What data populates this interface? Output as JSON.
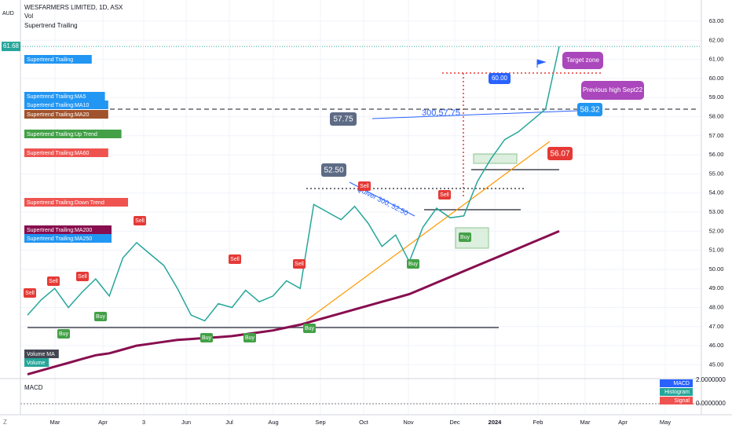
{
  "header": {
    "symbol": "WESFARMERS LIMITED, 1D, ASX",
    "volume": "Vol",
    "indicator": "Supertrend Trailing",
    "currency": "AUD"
  },
  "legend": [
    {
      "label": "Supertrend Trailing",
      "color": "#2196f3"
    },
    {
      "label": "Supertrend Trailing:MA5",
      "color": "#2196f3"
    },
    {
      "label": "Supertrend Trailing:MA10",
      "color": "#2196f3"
    },
    {
      "label": "Supertrend Trailing:MA20",
      "color": "#a0522d"
    },
    {
      "label": "Supertrend Trailing:Up Trend",
      "color": "#43a047"
    },
    {
      "label": "Supertrend Trailing:MA60",
      "color": "#ef5350"
    },
    {
      "label": "Supertrend Trailing:Down Trend",
      "color": "#ef5350"
    },
    {
      "label": "Supertrend Trailing:MA200",
      "color": "#880e4f"
    },
    {
      "label": "Supertrend Trailing:MA250",
      "color": "#2196f3"
    },
    {
      "label": "Volume MA",
      "color": "#434651"
    },
    {
      "label": "Volume",
      "color": "#26a69a"
    }
  ],
  "price_axis": {
    "ticks": [
      "63.00",
      "62.00",
      "61.00",
      "60.00",
      "59.00",
      "58.00",
      "57.00",
      "56.00",
      "55.00",
      "54.00",
      "53.00",
      "52.00",
      "51.00",
      "50.00",
      "49.00",
      "48.00",
      "47.00",
      "46.00",
      "45.00"
    ],
    "last_price": "61.68"
  },
  "time_axis": [
    "Mar",
    "Apr",
    "3",
    "Jun",
    "Jul",
    "Aug",
    "Sep",
    "Oct",
    "Nov",
    "Dec",
    "2024",
    "Feb",
    "Mar",
    "Apr",
    "May"
  ],
  "price_series": {
    "close": [
      47.6,
      48.4,
      49.0,
      48.0,
      48.8,
      49.5,
      48.6,
      50.6,
      51.4,
      50.8,
      50.2,
      49.0,
      47.6,
      47.3,
      48.2,
      48.0,
      48.9,
      48.3,
      48.6,
      49.4,
      49.0,
      53.4,
      53.0,
      52.6,
      53.3,
      52.4,
      51.2,
      51.8,
      50.4,
      52.2,
      53.2,
      52.7,
      52.8,
      54.6,
      55.8,
      56.8,
      57.2,
      57.8,
      58.4,
      61.68
    ],
    "ma250": [
      44.5,
      44.7,
      44.9,
      45.1,
      45.3,
      45.5,
      45.6,
      45.8,
      46.0,
      46.1,
      46.2,
      46.3,
      46.35,
      46.4,
      46.45,
      46.5,
      46.6,
      46.7,
      46.8,
      46.95,
      47.1,
      47.3,
      47.5,
      47.7,
      47.9,
      48.1,
      48.3,
      48.5,
      48.7,
      49.0,
      49.3,
      49.6,
      49.9,
      50.2,
      50.5,
      50.8,
      51.1,
      51.4,
      51.7,
      52.0
    ]
  },
  "annotations": {
    "box_a": "52.50",
    "box_b": "57.75",
    "line_label": "300,57.75",
    "slope_label": "Quiver 300, 52.50",
    "target": "Target zone",
    "previous_high": "Previous high Sept22",
    "level_60": "60.00",
    "level_5832": "58.32",
    "level_5607": "56.07",
    "sell": "Sell",
    "buy": "Buy"
  },
  "macd": {
    "title": "MACD",
    "tick_top": "2.0000000",
    "tick_zero": "0.0000000",
    "legend": [
      "MACD",
      "Histogram",
      "Signal"
    ]
  },
  "corner": "Z"
}
